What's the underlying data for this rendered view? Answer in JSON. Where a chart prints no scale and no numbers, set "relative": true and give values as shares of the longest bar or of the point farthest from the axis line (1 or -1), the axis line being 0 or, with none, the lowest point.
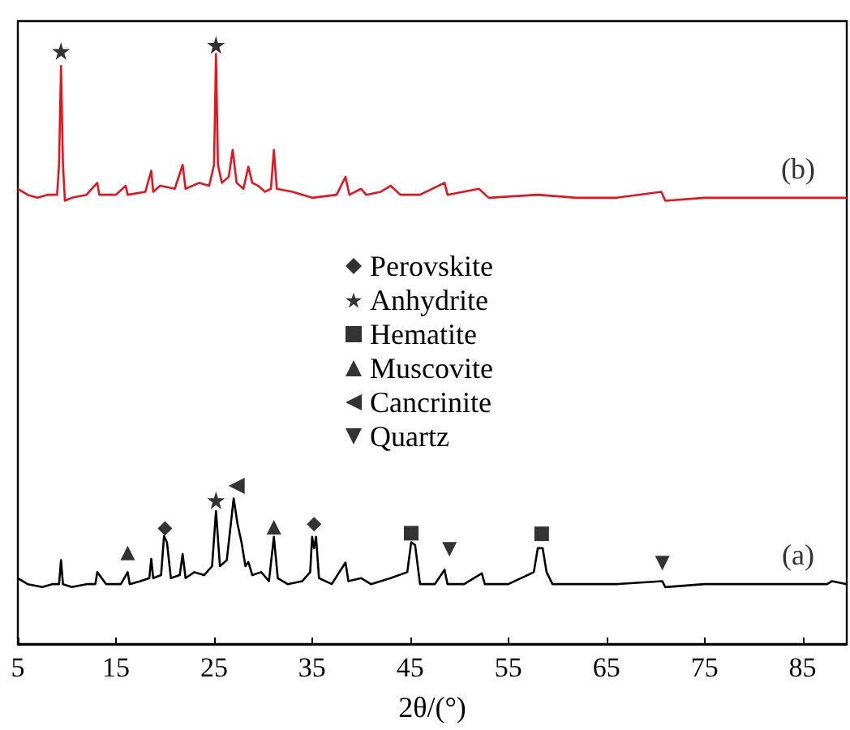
{
  "chart_data": {
    "type": "line",
    "relative": true,
    "xlabel": "2θ/(°)",
    "xlim": [
      5,
      89.5
    ],
    "xticks": [
      5,
      15,
      25,
      35,
      45,
      55,
      65,
      75,
      85
    ],
    "grid": false,
    "legend": "center",
    "series": [
      {
        "color": "#000000",
        "x": [
          5,
          6,
          7.5,
          8.5,
          9.2,
          9.4,
          9.6,
          10.5,
          12,
          12.9,
          13.1,
          14,
          15.5,
          16.2,
          16.4,
          17.5,
          18.4,
          18.6,
          18.8,
          19.6,
          19.9,
          20.2,
          20.6,
          21.5,
          21.8,
          22.1,
          23,
          24,
          24.8,
          25.2,
          25.6,
          26.3,
          27.0,
          27.4,
          27.8,
          28.2,
          28.5,
          28.9,
          29.8,
          30.6,
          31.1,
          31.5,
          32.5,
          34,
          34.8,
          35.0,
          35.2,
          35.4,
          35.7,
          37,
          38.4,
          38.7,
          40,
          41,
          43,
          44.7,
          45.1,
          45.5,
          46,
          47.5,
          48.5,
          48.8,
          50.5,
          52.3,
          52.6,
          55,
          57.6,
          58.0,
          58.5,
          58.9,
          59.5,
          62,
          66,
          70.7,
          71,
          75,
          80,
          85,
          87.5,
          88,
          89.5
        ],
        "values": [
          0.11,
          0.1,
          0.095,
          0.1,
          0.1,
          0.14,
          0.1,
          0.095,
          0.1,
          0.1,
          0.12,
          0.1,
          0.1,
          0.12,
          0.1,
          0.105,
          0.11,
          0.142,
          0.11,
          0.115,
          0.18,
          0.17,
          0.11,
          0.115,
          0.15,
          0.11,
          0.12,
          0.115,
          0.13,
          0.222,
          0.13,
          0.14,
          0.243,
          0.2,
          0.17,
          0.13,
          0.137,
          0.115,
          0.12,
          0.105,
          0.179,
          0.11,
          0.1,
          0.105,
          0.12,
          0.179,
          0.16,
          0.179,
          0.11,
          0.1,
          0.136,
          0.105,
          0.11,
          0.1,
          0.11,
          0.12,
          0.17,
          0.165,
          0.1,
          0.1,
          0.124,
          0.1,
          0.1,
          0.118,
          0.1,
          0.1,
          0.12,
          0.16,
          0.16,
          0.12,
          0.1,
          0.1,
          0.1,
          0.105,
          0.095,
          0.1,
          0.1,
          0.1,
          0.1,
          0.105,
          0.1
        ]
      },
      {
        "color": "#e8141b",
        "x": [
          5,
          6,
          7,
          8,
          9,
          9.2,
          9.4,
          9.6,
          9.8,
          10.5,
          12,
          13.1,
          13.3,
          15,
          16,
          16.2,
          18,
          18.6,
          18.8,
          19.5,
          21,
          21.8,
          22.1,
          23.5,
          24.5,
          25.0,
          25.2,
          25.4,
          25.8,
          26.5,
          26.9,
          27.3,
          28,
          28.5,
          28.9,
          29.5,
          30.2,
          30.8,
          31.1,
          31.4,
          33,
          35,
          37.5,
          38.4,
          38.8,
          40,
          40.5,
          42,
          43,
          44,
          46,
          48.5,
          48.8,
          52,
          53,
          58,
          62,
          66,
          70.6,
          71,
          75,
          80,
          85,
          89.5
        ],
        "values": [
          0.76,
          0.75,
          0.745,
          0.75,
          0.75,
          0.8,
          0.965,
          0.8,
          0.74,
          0.745,
          0.75,
          0.77,
          0.75,
          0.75,
          0.765,
          0.75,
          0.755,
          0.79,
          0.755,
          0.765,
          0.76,
          0.8,
          0.76,
          0.77,
          0.765,
          0.8,
          0.985,
          0.8,
          0.77,
          0.78,
          0.825,
          0.77,
          0.76,
          0.797,
          0.77,
          0.765,
          0.755,
          0.76,
          0.825,
          0.76,
          0.755,
          0.745,
          0.75,
          0.78,
          0.75,
          0.76,
          0.75,
          0.755,
          0.765,
          0.75,
          0.75,
          0.77,
          0.75,
          0.76,
          0.745,
          0.75,
          0.745,
          0.745,
          0.755,
          0.74,
          0.745,
          0.745,
          0.745,
          0.745
        ]
      },
      {
        "type": "scatter",
        "name": "Perovskite",
        "marker": "diamond",
        "color": "#000000",
        "x": [
          20.0,
          35.2
        ],
        "values": [
          0.193,
          0.2
        ]
      },
      {
        "type": "scatter",
        "name": "Anhydrite",
        "marker": "star",
        "color": "#000000",
        "x": [
          9.4,
          25.2,
          25.2
        ],
        "values": [
          0.99,
          1,
          0.24
        ]
      },
      {
        "type": "scatter",
        "name": "Hematite",
        "marker": "square",
        "color": "#000000",
        "x": [
          45.1,
          58.4
        ],
        "values": [
          0.185,
          0.184
        ]
      },
      {
        "type": "scatter",
        "name": "Muscovite",
        "marker": "triangle",
        "color": "#000000",
        "x": [
          16.2,
          31.1
        ],
        "values": [
          0.152,
          0.195
        ]
      },
      {
        "type": "scatter",
        "name": "Cancrinite",
        "marker": "triangle-left",
        "color": "#000000",
        "x": [
          27.3
        ],
        "values": [
          0.264
        ]
      },
      {
        "type": "scatter",
        "name": "Quartz",
        "marker": "triangle-down",
        "color": "#000000",
        "x": [
          49.0,
          70.7
        ],
        "values": [
          0.158,
          0.135
        ]
      }
    ],
    "annotations": [
      "(a)",
      "(b)"
    ]
  }
}
